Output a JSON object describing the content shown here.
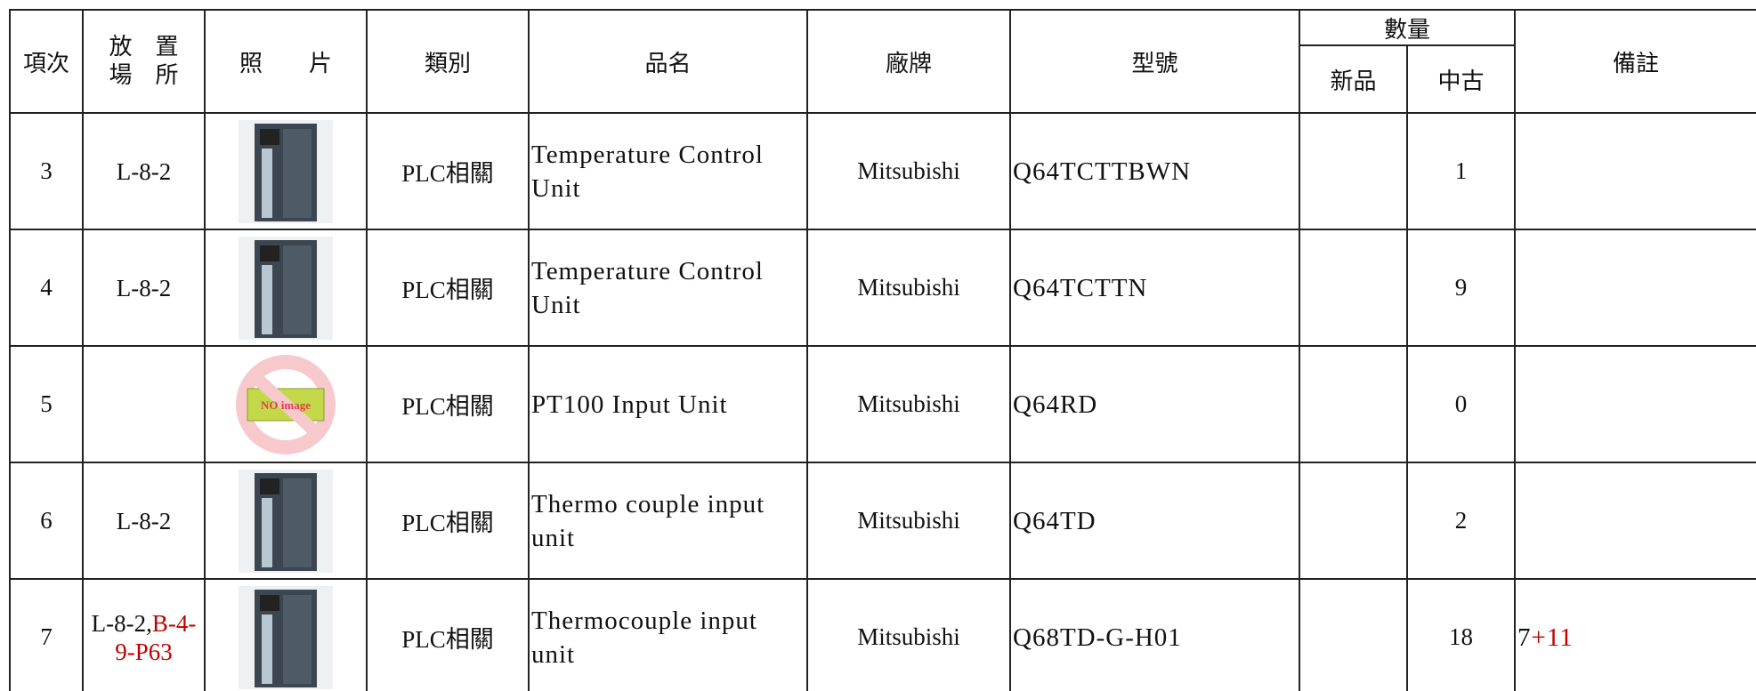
{
  "header": {
    "no": "項次",
    "location": [
      "放　置",
      "場　所"
    ],
    "photo": "照　　片",
    "category": "類別",
    "name": "品名",
    "brand": "廠牌",
    "model": "型號",
    "quantity": "數量",
    "new": "新品",
    "used": "中古",
    "remarks": "備註"
  },
  "table": {
    "rows": [
      {
        "no": 3,
        "location": [
          {
            "text": "L-8-2"
          }
        ],
        "category": "PLC相關",
        "name": "Temperature Control Unit",
        "brand": "Mitsubishi",
        "model": "Q64TCTTBWN",
        "used": 1
      },
      {
        "no": 4,
        "location": [
          {
            "text": "L-8-2"
          }
        ],
        "category": "PLC相關",
        "name": "Temperature Control Unit",
        "brand": "Mitsubishi",
        "model": "Q64TCTTN",
        "used": 9
      },
      {
        "no": 5,
        "no_image_text": "NO image",
        "category": "PLC相關",
        "name": "PT100 Input Unit",
        "brand": "Mitsubishi",
        "model": "Q64RD",
        "used": 0
      },
      {
        "no": 6,
        "location": [
          {
            "text": "L-8-2"
          }
        ],
        "category": "PLC相關",
        "name": "Thermo couple input unit",
        "brand": "Mitsubishi",
        "model": "Q64TD",
        "used": 2
      },
      {
        "no": 7,
        "location": [
          {
            "text": "L-8-2,"
          },
          {
            "text": "B-4-9-P63",
            "color": "#c00000"
          }
        ],
        "category": "PLC相關",
        "name": "Thermocouple input unit",
        "brand": "Mitsubishi",
        "model": "Q68TD-G-H01",
        "used": 18,
        "remarks": [
          {
            "text": "7"
          },
          {
            "text": "+11",
            "color": "#c00000"
          }
        ]
      }
    ]
  }
}
